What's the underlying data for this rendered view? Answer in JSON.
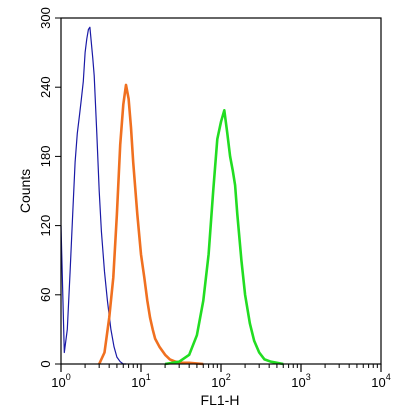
{
  "chart_data": {
    "type": "line",
    "xlabel": "FL1-H",
    "ylabel": "Counts",
    "x_scale": "log",
    "xlim": [
      1,
      10000
    ],
    "ylim": [
      0,
      300
    ],
    "x_ticks": [
      {
        "base": "10",
        "exp": "0"
      },
      {
        "base": "10",
        "exp": "1"
      },
      {
        "base": "10",
        "exp": "2"
      },
      {
        "base": "10",
        "exp": "3"
      },
      {
        "base": "10",
        "exp": "4"
      }
    ],
    "y_ticks": [
      "0",
      "60",
      "120",
      "180",
      "240",
      "300"
    ],
    "grid": false,
    "legend": "none",
    "series": [
      {
        "color": "#1a1aa6",
        "x": [
          1.0,
          1.1,
          1.2,
          1.3,
          1.4,
          1.5,
          1.6,
          1.7,
          1.8,
          1.9,
          2.0,
          2.1,
          2.2,
          2.3,
          2.4,
          2.5,
          2.6,
          2.8,
          3.0,
          3.2,
          3.5,
          3.8,
          4.2,
          4.6,
          5.0,
          5.5,
          6.0,
          6.5
        ],
        "y": [
          120,
          10,
          30,
          80,
          130,
          175,
          200,
          215,
          230,
          245,
          270,
          282,
          290,
          292,
          278,
          265,
          250,
          200,
          150,
          115,
          80,
          55,
          30,
          15,
          6,
          2,
          0,
          0
        ]
      },
      {
        "color": "#f07020",
        "x": [
          3.0,
          3.5,
          4.0,
          4.5,
          5.0,
          5.5,
          6.0,
          6.5,
          7.0,
          7.5,
          8.0,
          9.0,
          10,
          11,
          12,
          13,
          14,
          15,
          17,
          20,
          23,
          27,
          32,
          40,
          60
        ],
        "y": [
          0,
          10,
          40,
          75,
          130,
          190,
          225,
          242,
          230,
          205,
          175,
          130,
          95,
          75,
          55,
          40,
          30,
          22,
          15,
          8,
          4,
          2,
          1,
          1,
          0
        ]
      },
      {
        "color": "#22dd22",
        "x": [
          20,
          30,
          40,
          50,
          60,
          70,
          80,
          90,
          100,
          110,
          120,
          130,
          140,
          150,
          160,
          180,
          200,
          230,
          260,
          300,
          350,
          420,
          500,
          600
        ],
        "y": [
          0,
          2,
          8,
          25,
          55,
          95,
          150,
          195,
          210,
          220,
          200,
          180,
          168,
          155,
          130,
          90,
          60,
          35,
          20,
          10,
          4,
          2,
          1,
          0
        ]
      }
    ]
  }
}
